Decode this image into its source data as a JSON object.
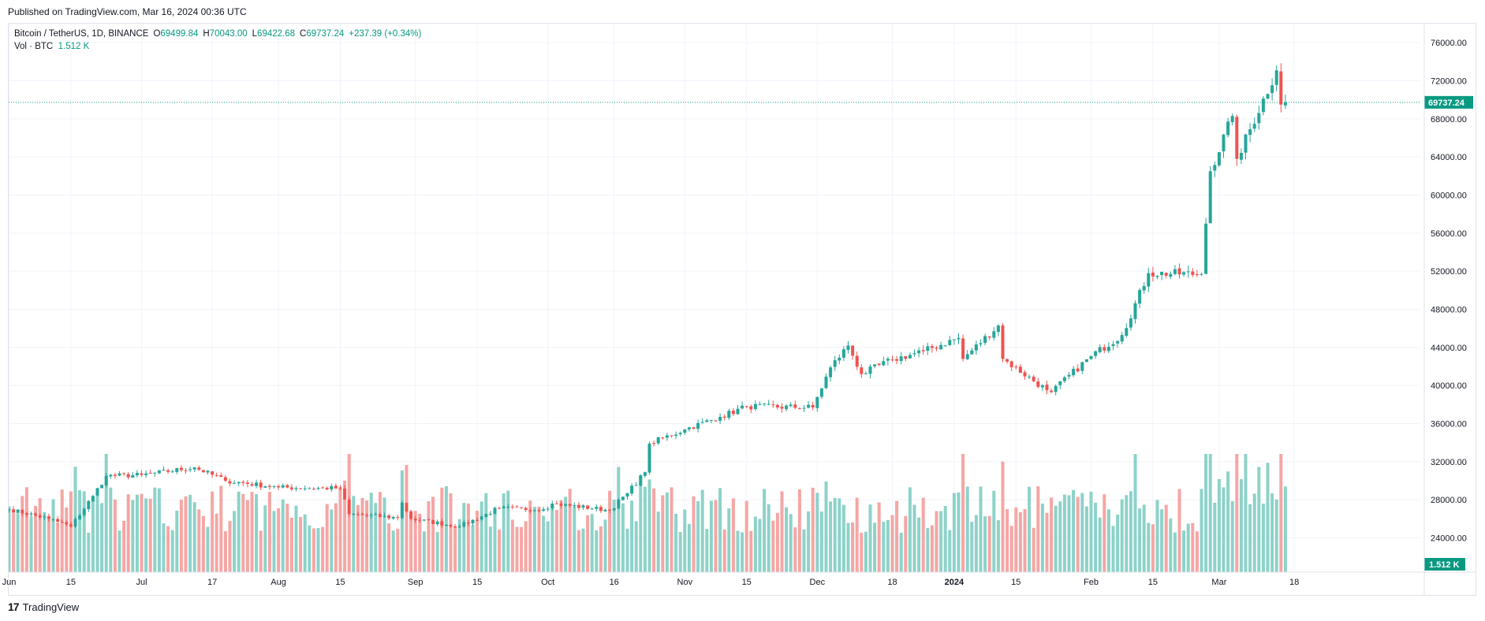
{
  "header": {
    "published": "Published on TradingView.com, Mar 16, 2024 00:36 UTC"
  },
  "legend": {
    "symbol": "Bitcoin / TetherUS, 1D, BINANCE",
    "open_label": "O",
    "open": "69499.84",
    "high_label": "H",
    "high": "70043.00",
    "low_label": "L",
    "low": "69422.68",
    "close_label": "C",
    "close": "69737.24",
    "change": "+237.39 (+0.34%)",
    "vol_label": "Vol · BTC",
    "vol_value": "1.512 K"
  },
  "footer": {
    "brand": "TradingView",
    "logo_icon": "tradingview-logo-icon"
  },
  "colors": {
    "up": "#26a69a",
    "down": "#ef5350",
    "vol_up": "#8dd2c9",
    "vol_down": "#f5a6a4",
    "grid": "#f0f3fa",
    "price_line": "#089981"
  },
  "chart_data": {
    "type": "candlestick",
    "title": "",
    "symbol": "BTCUSDT",
    "timeframe": "1D",
    "last_price": 69737.24,
    "last_price_label": "69737.24",
    "last_volume_label": "1.512 K",
    "ylim": [
      20400,
      78000
    ],
    "yticks": [
      24000,
      28000,
      32000,
      36000,
      40000,
      44000,
      48000,
      52000,
      56000,
      60000,
      64000,
      68000,
      72000,
      76000
    ],
    "ytick_labels": [
      "24000.00",
      "28000.00",
      "32000.00",
      "36000.00",
      "40000.00",
      "44000.00",
      "48000.00",
      "52000.00",
      "56000.00",
      "60000.00",
      "64000.00",
      "68000.00",
      "72000.00",
      "76000.00"
    ],
    "start_date": "2023-06-01",
    "end_date": "2024-03-16",
    "xticks": [
      {
        "date": "2023-06-01",
        "label": "Jun"
      },
      {
        "date": "2023-06-15",
        "label": "15"
      },
      {
        "date": "2023-07-01",
        "label": "Jul"
      },
      {
        "date": "2023-07-17",
        "label": "17"
      },
      {
        "date": "2023-08-01",
        "label": "Aug"
      },
      {
        "date": "2023-08-15",
        "label": "15"
      },
      {
        "date": "2023-09-01",
        "label": "Sep"
      },
      {
        "date": "2023-09-15",
        "label": "15"
      },
      {
        "date": "2023-10-01",
        "label": "Oct"
      },
      {
        "date": "2023-10-16",
        "label": "16"
      },
      {
        "date": "2023-11-01",
        "label": "Nov"
      },
      {
        "date": "2023-11-15",
        "label": "15"
      },
      {
        "date": "2023-12-01",
        "label": "Dec"
      },
      {
        "date": "2023-12-18",
        "label": "18"
      },
      {
        "date": "2024-01-01",
        "label": "2024"
      },
      {
        "date": "2024-01-15",
        "label": "15"
      },
      {
        "date": "2024-02-01",
        "label": "Feb"
      },
      {
        "date": "2024-02-15",
        "label": "15"
      },
      {
        "date": "2024-03-01",
        "label": "Mar"
      },
      {
        "date": "2024-03-18",
        "label": "18"
      }
    ],
    "close_anchors": [
      [
        "2023-06-01",
        27000
      ],
      [
        "2023-06-10",
        26000
      ],
      [
        "2023-06-15",
        25200
      ],
      [
        "2023-06-20",
        28400
      ],
      [
        "2023-06-23",
        30500
      ],
      [
        "2023-07-01",
        30600
      ],
      [
        "2023-07-13",
        31400
      ],
      [
        "2023-07-20",
        30000
      ],
      [
        "2023-08-01",
        29300
      ],
      [
        "2023-08-15",
        29200
      ],
      [
        "2023-08-17",
        26500
      ],
      [
        "2023-08-28",
        26100
      ],
      [
        "2023-08-29",
        27700
      ],
      [
        "2023-08-31",
        26000
      ],
      [
        "2023-09-11",
        25200
      ],
      [
        "2023-09-20",
        27100
      ],
      [
        "2023-09-30",
        27000
      ],
      [
        "2023-10-02",
        27600
      ],
      [
        "2023-10-15",
        26900
      ],
      [
        "2023-10-19",
        28700
      ],
      [
        "2023-10-23",
        30900
      ],
      [
        "2023-10-24",
        33900
      ],
      [
        "2023-11-01",
        35400
      ],
      [
        "2023-11-09",
        36700
      ],
      [
        "2023-11-15",
        37800
      ],
      [
        "2023-11-30",
        37700
      ],
      [
        "2023-12-04",
        41900
      ],
      [
        "2023-12-08",
        44200
      ],
      [
        "2023-12-11",
        41200
      ],
      [
        "2023-12-18",
        42700
      ],
      [
        "2023-12-25",
        43600
      ],
      [
        "2024-01-02",
        45000
      ],
      [
        "2024-01-03",
        42800
      ],
      [
        "2024-01-11",
        46300
      ],
      [
        "2024-01-12",
        42800
      ],
      [
        "2024-01-22",
        39500
      ],
      [
        "2024-01-23",
        39300
      ],
      [
        "2024-02-01",
        43100
      ],
      [
        "2024-02-08",
        45300
      ],
      [
        "2024-02-14",
        51800
      ],
      [
        "2024-02-26",
        51700
      ],
      [
        "2024-02-27",
        57000
      ],
      [
        "2024-02-28",
        62500
      ],
      [
        "2024-03-04",
        68300
      ],
      [
        "2024-03-05",
        63800
      ],
      [
        "2024-03-14",
        73100
      ],
      [
        "2024-03-15",
        69500
      ],
      [
        "2024-03-16",
        69737.24
      ]
    ]
  }
}
